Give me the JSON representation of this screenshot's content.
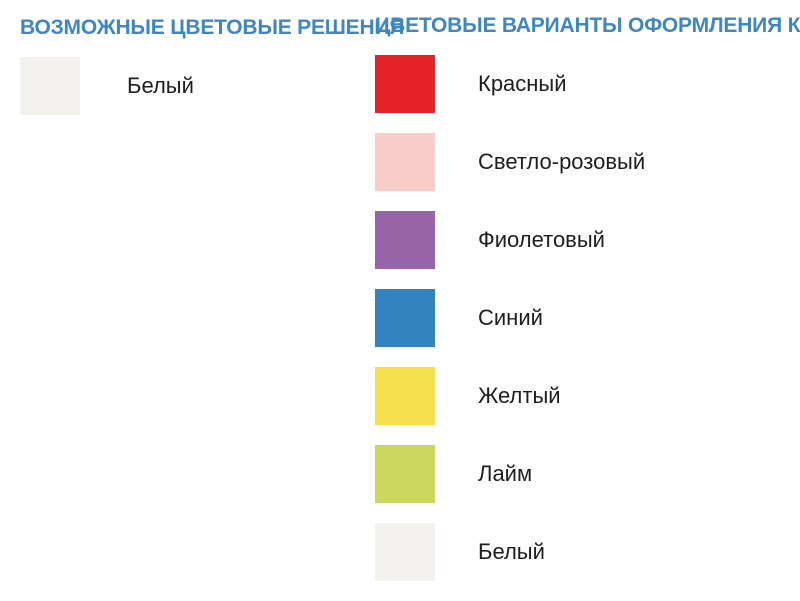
{
  "page": {
    "background": "#ffffff",
    "heading_color": "#3c87c4",
    "label_color": "#1e1e1e"
  },
  "left_panel": {
    "title": "ВОЗМОЖНЫЕ ЦВЕТОВЫЕ РЕШЕНИЯ",
    "swatches": [
      {
        "label": "Белый",
        "color": "#f3f1ee"
      }
    ]
  },
  "right_panel": {
    "title": "ЦВЕТОВЫЕ ВАРИАНТЫ ОФОРМЛЕНИЯ КАНТА",
    "swatches": [
      {
        "label": "Красный",
        "color": "#e62229"
      },
      {
        "label": "Светло-розовый",
        "color": "#f8cdc8"
      },
      {
        "label": "Фиолетовый",
        "color": "#9764a8"
      },
      {
        "label": "Синий",
        "color": "#3483c1"
      },
      {
        "label": "Желтый",
        "color": "#f4e04d"
      },
      {
        "label": "Лайм",
        "color": "#cad85d"
      },
      {
        "label": "Белый",
        "color": "#f3f1ee"
      }
    ]
  }
}
